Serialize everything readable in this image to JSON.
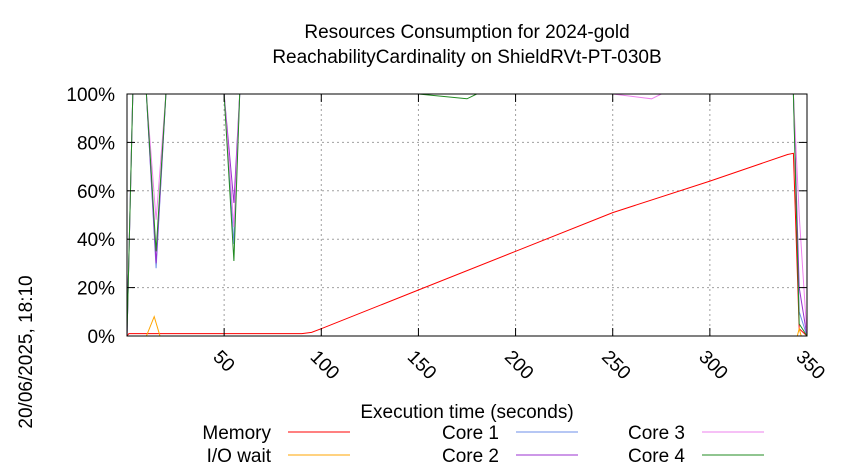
{
  "chart_data": {
    "type": "line",
    "title_line1": "Resources Consumption for 2024-gold",
    "title_line2": "ReachabilityCardinality on ShieldRVt-PT-030B",
    "xlabel": "Execution time (seconds)",
    "timestamp_label": "20/06/2025, 18:10",
    "xlim": [
      0,
      350
    ],
    "ylim": [
      0,
      100
    ],
    "x_ticks": [
      50,
      100,
      150,
      200,
      250,
      300,
      350
    ],
    "y_ticks": [
      0,
      20,
      40,
      60,
      80,
      100
    ],
    "y_tick_suffix": "%",
    "grid": true,
    "legend_position": "bottom",
    "series": [
      {
        "name": "Memory",
        "color": "#ff0000",
        "points": [
          [
            0,
            0
          ],
          [
            1,
            1
          ],
          [
            5,
            1
          ],
          [
            10,
            1
          ],
          [
            20,
            1
          ],
          [
            30,
            1
          ],
          [
            40,
            1
          ],
          [
            50,
            1
          ],
          [
            60,
            1
          ],
          [
            70,
            1
          ],
          [
            80,
            1
          ],
          [
            90,
            1
          ],
          [
            95,
            1.5
          ],
          [
            100,
            3
          ],
          [
            150,
            19
          ],
          [
            200,
            35
          ],
          [
            250,
            51
          ],
          [
            300,
            64
          ],
          [
            340,
            75
          ],
          [
            343,
            75.5
          ],
          [
            346,
            3
          ],
          [
            350,
            0
          ]
        ]
      },
      {
        "name": "I/O wait",
        "color": "#ffa500",
        "points": [
          [
            0,
            0
          ],
          [
            10,
            0
          ],
          [
            14,
            8
          ],
          [
            17,
            0
          ],
          [
            40,
            0
          ],
          [
            345,
            0
          ],
          [
            346,
            3
          ],
          [
            347,
            0
          ],
          [
            350,
            0
          ]
        ]
      },
      {
        "name": "Core 1",
        "color": "#6d8fe8",
        "points": [
          [
            0,
            0
          ],
          [
            3,
            100
          ],
          [
            10,
            100
          ],
          [
            15,
            28
          ],
          [
            20,
            100
          ],
          [
            50,
            100
          ],
          [
            55,
            38
          ],
          [
            58,
            100
          ],
          [
            100,
            100
          ],
          [
            150,
            100
          ],
          [
            175,
            100
          ],
          [
            200,
            100
          ],
          [
            250,
            100
          ],
          [
            270,
            100
          ],
          [
            300,
            100
          ],
          [
            343,
            100
          ],
          [
            346,
            10
          ],
          [
            350,
            0
          ]
        ]
      },
      {
        "name": "Core 2",
        "color": "#9b30d0",
        "points": [
          [
            0,
            0
          ],
          [
            3,
            100
          ],
          [
            10,
            100
          ],
          [
            15,
            30
          ],
          [
            20,
            100
          ],
          [
            50,
            100
          ],
          [
            55,
            55
          ],
          [
            58,
            100
          ],
          [
            100,
            100
          ],
          [
            150,
            100
          ],
          [
            175,
            100
          ],
          [
            200,
            100
          ],
          [
            250,
            100
          ],
          [
            270,
            100
          ],
          [
            300,
            100
          ],
          [
            343,
            100
          ],
          [
            346,
            20
          ],
          [
            350,
            0
          ]
        ]
      },
      {
        "name": "Core 3",
        "color": "#ee82ee",
        "points": [
          [
            0,
            0
          ],
          [
            3,
            100
          ],
          [
            10,
            100
          ],
          [
            15,
            48
          ],
          [
            20,
            100
          ],
          [
            50,
            100
          ],
          [
            55,
            45
          ],
          [
            58,
            100
          ],
          [
            100,
            100
          ],
          [
            150,
            100
          ],
          [
            175,
            100
          ],
          [
            200,
            100
          ],
          [
            250,
            100
          ],
          [
            270,
            98
          ],
          [
            275,
            100
          ],
          [
            300,
            100
          ],
          [
            343,
            100
          ],
          [
            346,
            50
          ],
          [
            350,
            0
          ]
        ]
      },
      {
        "name": "Core 4",
        "color": "#228b22",
        "points": [
          [
            0,
            0
          ],
          [
            3,
            100
          ],
          [
            10,
            100
          ],
          [
            15,
            35
          ],
          [
            20,
            100
          ],
          [
            50,
            100
          ],
          [
            55,
            31
          ],
          [
            58,
            100
          ],
          [
            100,
            100
          ],
          [
            150,
            100
          ],
          [
            175,
            98
          ],
          [
            180,
            100
          ],
          [
            200,
            100
          ],
          [
            250,
            100
          ],
          [
            300,
            100
          ],
          [
            343,
            100
          ],
          [
            346,
            5
          ],
          [
            350,
            0
          ]
        ]
      }
    ]
  }
}
